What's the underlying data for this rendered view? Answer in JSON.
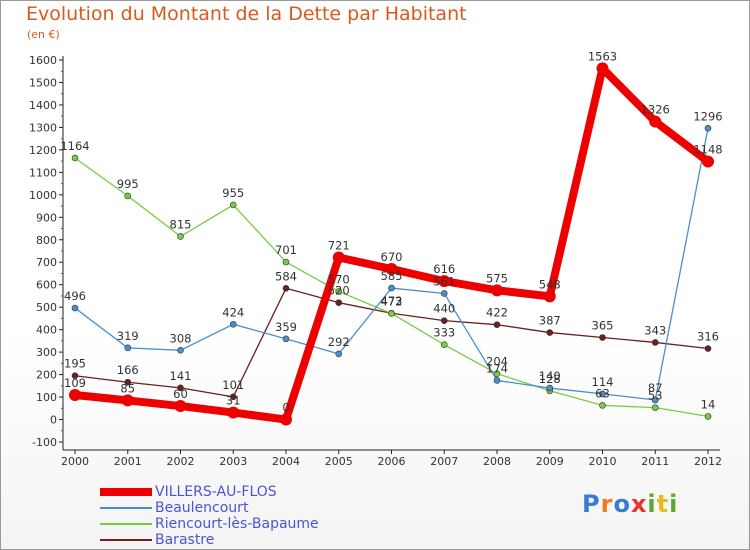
{
  "title": "Evolution du Montant de la Dette par Habitant",
  "unit_label": "(en €)",
  "logo": {
    "text": "Proxiti",
    "letter_colors": [
      "#3a7bd5",
      "#f07c1b",
      "#3a7bd5",
      "#e8352b",
      "#5aa832",
      "#f0b71b",
      "#5aa832"
    ]
  },
  "chart_data": {
    "type": "line",
    "title": "Evolution du Montant de la Dette par Habitant",
    "ylabel": "(en €)",
    "xlabel": "",
    "x": [
      "2000",
      "2001",
      "2002",
      "2003",
      "2004",
      "2005",
      "2006",
      "2007",
      "2008",
      "2009",
      "2010",
      "2011",
      "2012"
    ],
    "ylim": [
      -100,
      1600
    ],
    "yticks": [
      -100,
      0,
      100,
      200,
      300,
      400,
      500,
      600,
      700,
      800,
      900,
      1000,
      1100,
      1200,
      1300,
      1400,
      1500,
      1600
    ],
    "grid": false,
    "legend_position": "bottom-left",
    "series": [
      {
        "name": "VILLERS-AU-FLOS",
        "color": "#ee0000",
        "values": [
          109,
          85,
          60,
          31,
          0,
          721,
          670,
          616,
          575,
          548,
          1563,
          1326,
          1148
        ]
      },
      {
        "name": "Beaulencourt",
        "color": "#4a8fcc",
        "values": [
          496,
          319,
          308,
          424,
          359,
          292,
          585,
          561,
          174,
          140,
          114,
          87,
          1296
        ]
      },
      {
        "name": "Riencourt-lès-Bapaume",
        "color": "#77cc44",
        "values": [
          1164,
          995,
          815,
          955,
          701,
          570,
          472,
          333,
          204,
          128,
          63,
          53,
          14
        ]
      },
      {
        "name": "Barastre",
        "color": "#6b1f1f",
        "values": [
          195,
          166,
          141,
          101,
          584,
          520,
          473,
          440,
          422,
          387,
          365,
          343,
          316
        ]
      }
    ]
  }
}
